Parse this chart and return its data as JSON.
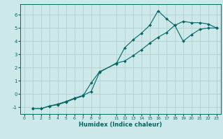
{
  "xlabel": "Humidex (Indice chaleur)",
  "bg_color": "#cce8e8",
  "grid_color": "#aacccc",
  "line_color": "#006666",
  "xlim": [
    -0.5,
    23.5
  ],
  "ylim": [
    -1.5,
    6.8
  ],
  "x_ticks": [
    0,
    1,
    2,
    3,
    4,
    5,
    6,
    7,
    8,
    9,
    11,
    12,
    13,
    14,
    15,
    16,
    17,
    18,
    19,
    20,
    21,
    22,
    23
  ],
  "y_ticks": [
    -1,
    0,
    1,
    2,
    3,
    4,
    5,
    6
  ],
  "line1_x": [
    1,
    2,
    3,
    4,
    5,
    6,
    7,
    8,
    9,
    11,
    12,
    13,
    14,
    15,
    16,
    17,
    18,
    19,
    20,
    21,
    22,
    23
  ],
  "line1_y": [
    -1.1,
    -1.1,
    -0.9,
    -0.8,
    -0.6,
    -0.35,
    -0.15,
    0.85,
    1.7,
    2.3,
    3.5,
    4.1,
    4.6,
    5.2,
    6.3,
    5.7,
    5.2,
    5.5,
    5.4,
    5.4,
    5.3,
    5.0
  ],
  "line2_x": [
    1,
    2,
    3,
    4,
    5,
    6,
    7,
    8,
    9,
    11,
    12,
    13,
    14,
    15,
    16,
    17,
    18,
    19,
    20,
    21,
    22,
    23
  ],
  "line2_y": [
    -1.1,
    -1.1,
    -0.9,
    -0.75,
    -0.55,
    -0.3,
    -0.1,
    0.2,
    1.65,
    2.35,
    2.5,
    2.9,
    3.35,
    3.85,
    4.3,
    4.65,
    5.2,
    4.0,
    4.5,
    4.9,
    5.0,
    5.0
  ],
  "marker": "D",
  "markersize": 2.0,
  "linewidth": 0.8
}
